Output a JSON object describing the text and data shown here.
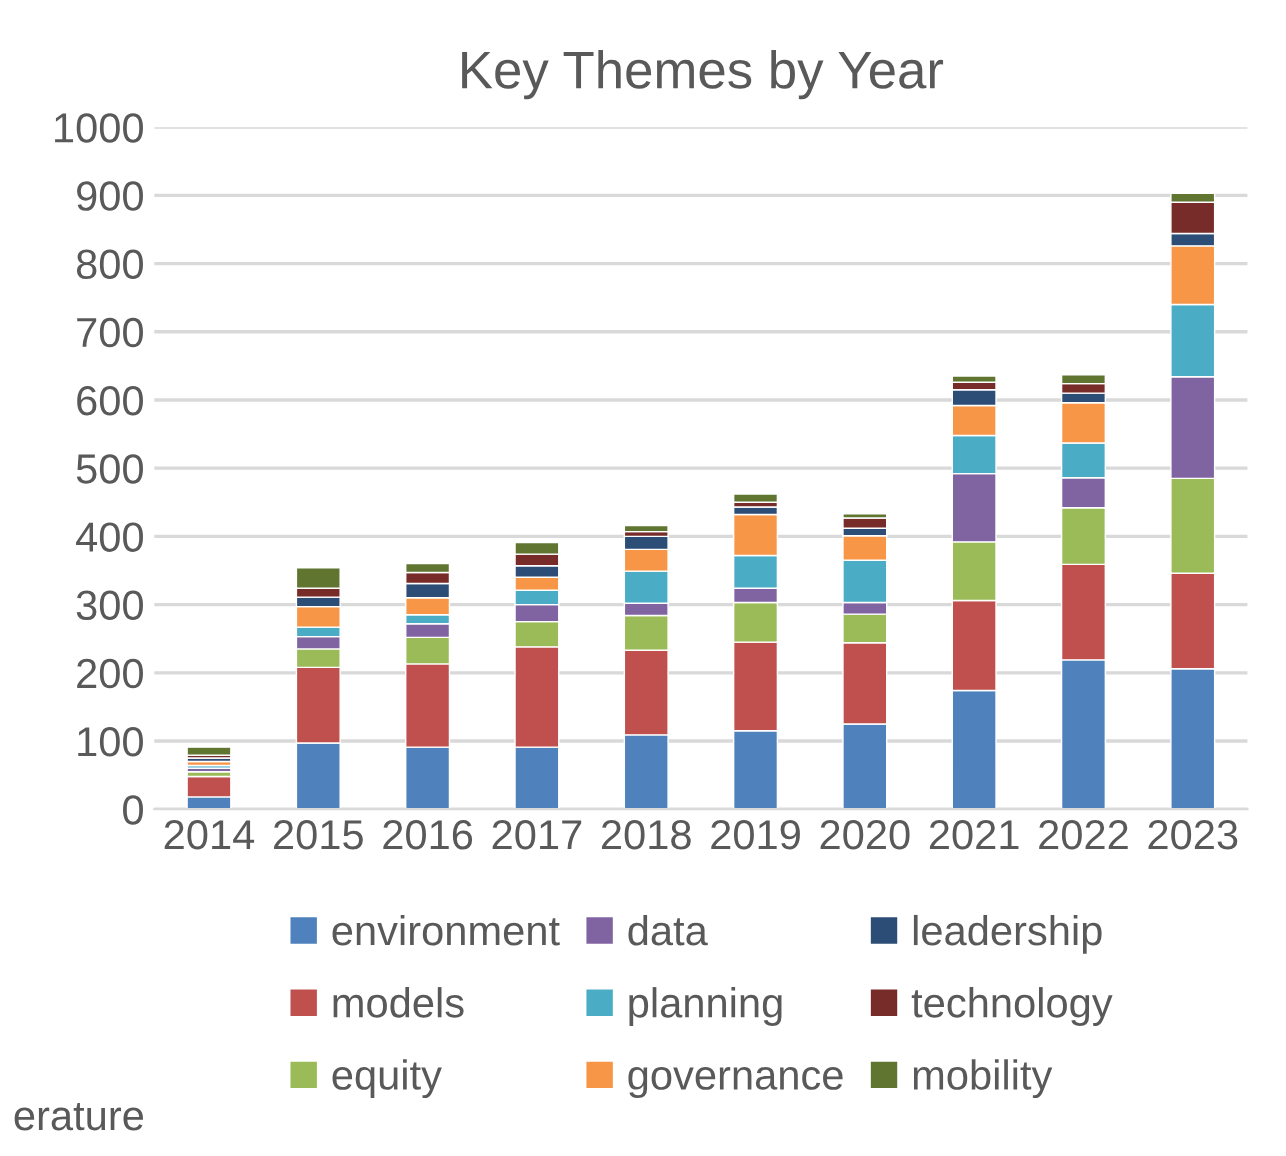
{
  "chart_data": {
    "type": "bar",
    "title": "Key Themes by Year",
    "stacked": true,
    "categories": [
      "2014",
      "2015",
      "2016",
      "2017",
      "2018",
      "2019",
      "2020",
      "2021",
      "2022",
      "2023"
    ],
    "series": [
      {
        "name": "environment",
        "color": "#4f81bd",
        "values": [
          18,
          97,
          91,
          91,
          109,
          115,
          125,
          174,
          219,
          206
        ]
      },
      {
        "name": "models",
        "color": "#c0504d",
        "values": [
          30,
          111,
          122,
          147,
          124,
          130,
          119,
          132,
          140,
          140
        ]
      },
      {
        "name": "equity",
        "color": "#9bbb59",
        "values": [
          7,
          27,
          39,
          37,
          51,
          58,
          42,
          86,
          83,
          139
        ]
      },
      {
        "name": "data",
        "color": "#8064a2",
        "values": [
          5,
          18,
          20,
          25,
          18,
          21,
          17,
          100,
          44,
          149
        ]
      },
      {
        "name": "planning",
        "color": "#4bacc6",
        "values": [
          4,
          14,
          13,
          21,
          47,
          48,
          62,
          56,
          51,
          106
        ]
      },
      {
        "name": "governance",
        "color": "#f79646",
        "values": [
          6,
          30,
          25,
          19,
          32,
          60,
          36,
          44,
          59,
          86
        ]
      },
      {
        "name": "leadership",
        "color": "#2c4d75",
        "values": [
          5,
          14,
          21,
          17,
          19,
          11,
          11,
          23,
          14,
          18
        ]
      },
      {
        "name": "technology",
        "color": "#772c2a",
        "values": [
          4,
          13,
          16,
          17,
          7,
          7,
          15,
          11,
          14,
          46
        ]
      },
      {
        "name": "mobility",
        "color": "#5f7530",
        "values": [
          12,
          30,
          13,
          17,
          9,
          12,
          6,
          9,
          13,
          13
        ]
      }
    ],
    "ylim": [
      0,
      1000
    ],
    "yticks": [
      0,
      100,
      200,
      300,
      400,
      500,
      600,
      700,
      800,
      900,
      1000
    ],
    "grid": "y",
    "legend": "bottom",
    "annotations": [
      "erature"
    ]
  }
}
